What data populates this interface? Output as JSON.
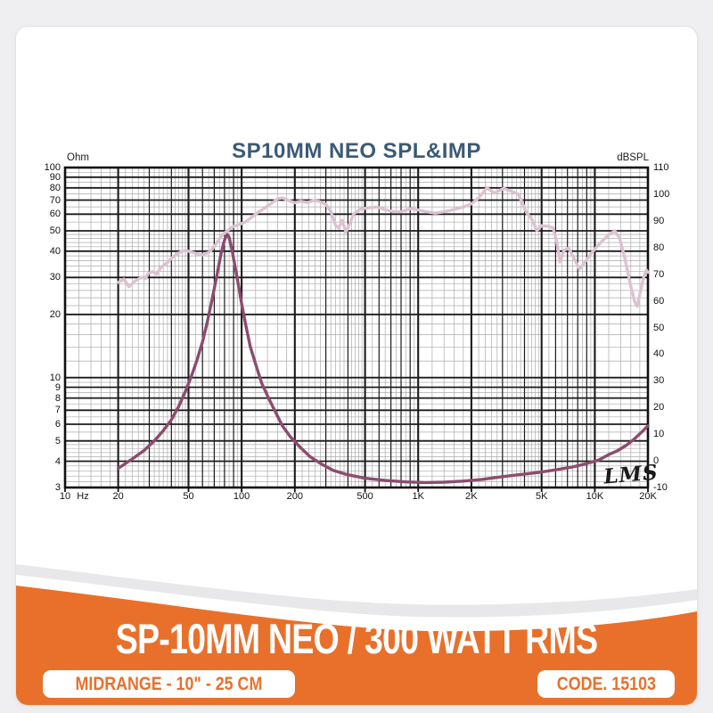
{
  "page": {
    "background": "#EFEFF1"
  },
  "card": {
    "background": "#FFFFFF"
  },
  "chart": {
    "title": "SP10MM NEO SPL&IMP",
    "title_color": "#3B5A77",
    "left_axis_unit": "Ohm",
    "right_axis_unit": "dBSPL",
    "watermark": "LMS"
  },
  "footer": {
    "title": "SP-10MM NEO / 300 WATT RMS",
    "spec_badge": "MIDRANGE - 10\" - 25 CM",
    "code_badge": "CODE. 15103",
    "colors": {
      "band_orange": "#E9702B",
      "swoosh_gray": "#E8E8EA",
      "swoosh_white": "#FFFFFF",
      "badge_bg": "#FFFFFF",
      "badge_text": "#E9702B",
      "title_text": "#FFFFFF"
    }
  },
  "chart_data": {
    "type": "line",
    "title": "SP10MM NEO SPL&IMP",
    "x_axis": {
      "label": "Hz",
      "scale": "log",
      "min": 10,
      "max": 20000,
      "ticks": [
        [
          10,
          "10"
        ],
        [
          20,
          "20"
        ],
        [
          50,
          "50"
        ],
        [
          100,
          "100"
        ],
        [
          200,
          "200"
        ],
        [
          500,
          "500"
        ],
        [
          1000,
          "1K"
        ],
        [
          2000,
          "2K"
        ],
        [
          5000,
          "5K"
        ],
        [
          10000,
          "10K"
        ],
        [
          20000,
          "20K"
        ]
      ]
    },
    "y_axis_left": {
      "label": "Ohm",
      "scale": "log",
      "min": 3,
      "max": 100,
      "ticks": [
        100,
        90,
        80,
        70,
        60,
        50,
        40,
        30,
        20,
        10,
        9,
        8,
        7,
        6,
        5,
        4,
        3
      ]
    },
    "y_axis_right": {
      "label": "dBSPL",
      "scale": "linear",
      "min": -10,
      "max": 110,
      "ticks": [
        110,
        100,
        90,
        80,
        70,
        60,
        50,
        40,
        30,
        20,
        10,
        0,
        -10
      ]
    },
    "grid": true,
    "legend": "none",
    "annotations": [
      "LMS"
    ],
    "colors": {
      "grid_major": "#1b1b1b",
      "grid_minor": "#ABABAB",
      "border": "#111111"
    },
    "series": [
      {
        "name": "Impedance",
        "unit": "Ohm",
        "axis": "left",
        "color": "#8C4C6E",
        "points": [
          [
            20,
            3.7
          ],
          [
            24,
            4.1
          ],
          [
            28,
            4.5
          ],
          [
            32,
            5.0
          ],
          [
            36,
            5.6
          ],
          [
            40,
            6.3
          ],
          [
            44,
            7.3
          ],
          [
            48,
            8.6
          ],
          [
            52,
            10.2
          ],
          [
            56,
            12.2
          ],
          [
            60,
            14.8
          ],
          [
            64,
            18.5
          ],
          [
            68,
            23.5
          ],
          [
            72,
            30
          ],
          [
            76,
            38
          ],
          [
            79,
            43.5
          ],
          [
            81,
            46.5
          ],
          [
            83,
            48
          ],
          [
            85,
            46.5
          ],
          [
            88,
            41
          ],
          [
            92,
            33.5
          ],
          [
            96,
            27.5
          ],
          [
            100,
            22.5
          ],
          [
            106,
            17.5
          ],
          [
            112,
            14
          ],
          [
            120,
            11.6
          ],
          [
            130,
            9.4
          ],
          [
            142,
            8.0
          ],
          [
            155,
            6.9
          ],
          [
            170,
            5.9
          ],
          [
            190,
            5.2
          ],
          [
            215,
            4.65
          ],
          [
            245,
            4.2
          ],
          [
            280,
            3.9
          ],
          [
            330,
            3.62
          ],
          [
            400,
            3.45
          ],
          [
            500,
            3.32
          ],
          [
            650,
            3.24
          ],
          [
            850,
            3.19
          ],
          [
            1100,
            3.17
          ],
          [
            1400,
            3.18
          ],
          [
            1800,
            3.22
          ],
          [
            2300,
            3.28
          ],
          [
            3000,
            3.38
          ],
          [
            3800,
            3.46
          ],
          [
            4800,
            3.54
          ],
          [
            6000,
            3.64
          ],
          [
            7500,
            3.76
          ],
          [
            9000,
            3.9
          ],
          [
            10500,
            4.05
          ],
          [
            12000,
            4.3
          ],
          [
            13500,
            4.5
          ],
          [
            15000,
            4.75
          ],
          [
            16500,
            5.05
          ],
          [
            18000,
            5.4
          ],
          [
            19000,
            5.65
          ],
          [
            20000,
            5.9
          ]
        ]
      },
      {
        "name": "SPL",
        "unit": "dBSPL",
        "axis": "right",
        "color": "#DCC2D0",
        "points": [
          [
            20,
            66.9
          ],
          [
            21.5,
            68.2
          ],
          [
            23,
            65.3
          ],
          [
            25,
            67.5
          ],
          [
            27,
            68.8
          ],
          [
            28.5,
            68.3
          ],
          [
            29.5,
            70.3
          ],
          [
            31.5,
            71
          ],
          [
            33,
            70
          ],
          [
            35,
            72.6
          ],
          [
            38,
            74.4
          ],
          [
            41,
            76.6
          ],
          [
            45,
            78.3
          ],
          [
            48,
            78.9
          ],
          [
            52,
            78.3
          ],
          [
            56,
            77.6
          ],
          [
            60,
            77.2
          ],
          [
            66,
            78.4
          ],
          [
            71,
            81
          ],
          [
            77,
            84.5
          ],
          [
            82,
            86
          ],
          [
            89,
            87.8
          ],
          [
            96,
            88.5
          ],
          [
            105,
            89.6
          ],
          [
            115,
            91.5
          ],
          [
            125,
            93.4
          ],
          [
            135,
            94.8
          ],
          [
            150,
            96.9
          ],
          [
            160,
            98.3
          ],
          [
            170,
            98.6
          ],
          [
            185,
            97.6
          ],
          [
            200,
            96.8
          ],
          [
            215,
            97.4
          ],
          [
            235,
            96.9
          ],
          [
            255,
            97.6
          ],
          [
            275,
            97.3
          ],
          [
            300,
            96.2
          ],
          [
            320,
            93.6
          ],
          [
            340,
            88.4
          ],
          [
            355,
            87.3
          ],
          [
            370,
            90.2
          ],
          [
            390,
            85.8
          ],
          [
            410,
            89
          ],
          [
            430,
            92.6
          ],
          [
            470,
            94.4
          ],
          [
            520,
            94.9
          ],
          [
            580,
            95.2
          ],
          [
            650,
            94.2
          ],
          [
            720,
            93.5
          ],
          [
            800,
            93.4
          ],
          [
            900,
            94.6
          ],
          [
            1000,
            94.1
          ],
          [
            1100,
            93.5
          ],
          [
            1250,
            92.9
          ],
          [
            1400,
            93.4
          ],
          [
            1600,
            94.3
          ],
          [
            1800,
            95.2
          ],
          [
            2000,
            96.4
          ],
          [
            2200,
            98.6
          ],
          [
            2450,
            102.4
          ],
          [
            2700,
            100.4
          ],
          [
            3050,
            102.2
          ],
          [
            3400,
            101
          ],
          [
            3700,
            100
          ],
          [
            4100,
            93.2
          ],
          [
            4400,
            90.6
          ],
          [
            4700,
            86.3
          ],
          [
            5000,
            88.2
          ],
          [
            5400,
            88
          ],
          [
            5800,
            87.4
          ],
          [
            6100,
            82
          ],
          [
            6350,
            74.6
          ],
          [
            6700,
            79
          ],
          [
            7100,
            79.8
          ],
          [
            7600,
            76.2
          ],
          [
            8200,
            71.9
          ],
          [
            8800,
            74.6
          ],
          [
            9500,
            77.6
          ],
          [
            10000,
            79.4
          ],
          [
            11000,
            82.4
          ],
          [
            12000,
            84.8
          ],
          [
            13000,
            86.3
          ],
          [
            13800,
            83.6
          ],
          [
            14800,
            76
          ],
          [
            15800,
            67
          ],
          [
            16800,
            59.8
          ],
          [
            17400,
            58
          ],
          [
            18200,
            64
          ],
          [
            19000,
            69.4
          ],
          [
            19600,
            71.6
          ],
          [
            20000,
            70.7
          ]
        ]
      }
    ]
  }
}
